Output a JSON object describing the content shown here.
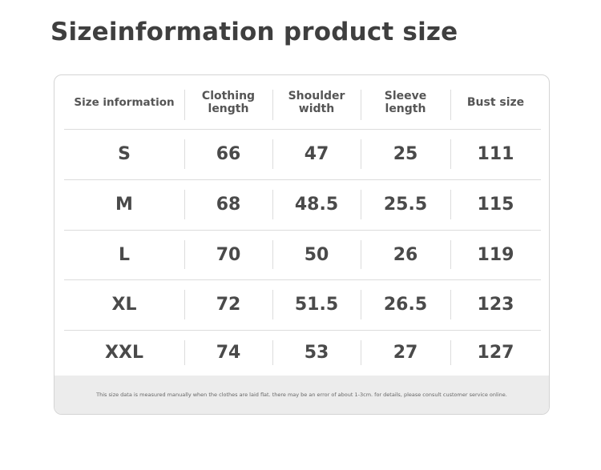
{
  "header": {
    "title": "Sizeinformation product size"
  },
  "table": {
    "columns": [
      "Size information",
      "Clothing length",
      "Shoulder width",
      "Sleeve length",
      "Bust size"
    ],
    "rows": [
      [
        "S",
        66,
        47,
        25,
        111
      ],
      [
        "M",
        68,
        48.5,
        25.5,
        115
      ],
      [
        "L",
        70,
        50,
        26,
        119
      ],
      [
        "XL",
        72,
        51.5,
        26.5,
        123
      ],
      [
        "XXL",
        74,
        53,
        27,
        127
      ]
    ],
    "note": "This size data is measured manually when the clothes are laid flat. there may be an error of about 1-3cm. for details, please consult customer service online."
  }
}
